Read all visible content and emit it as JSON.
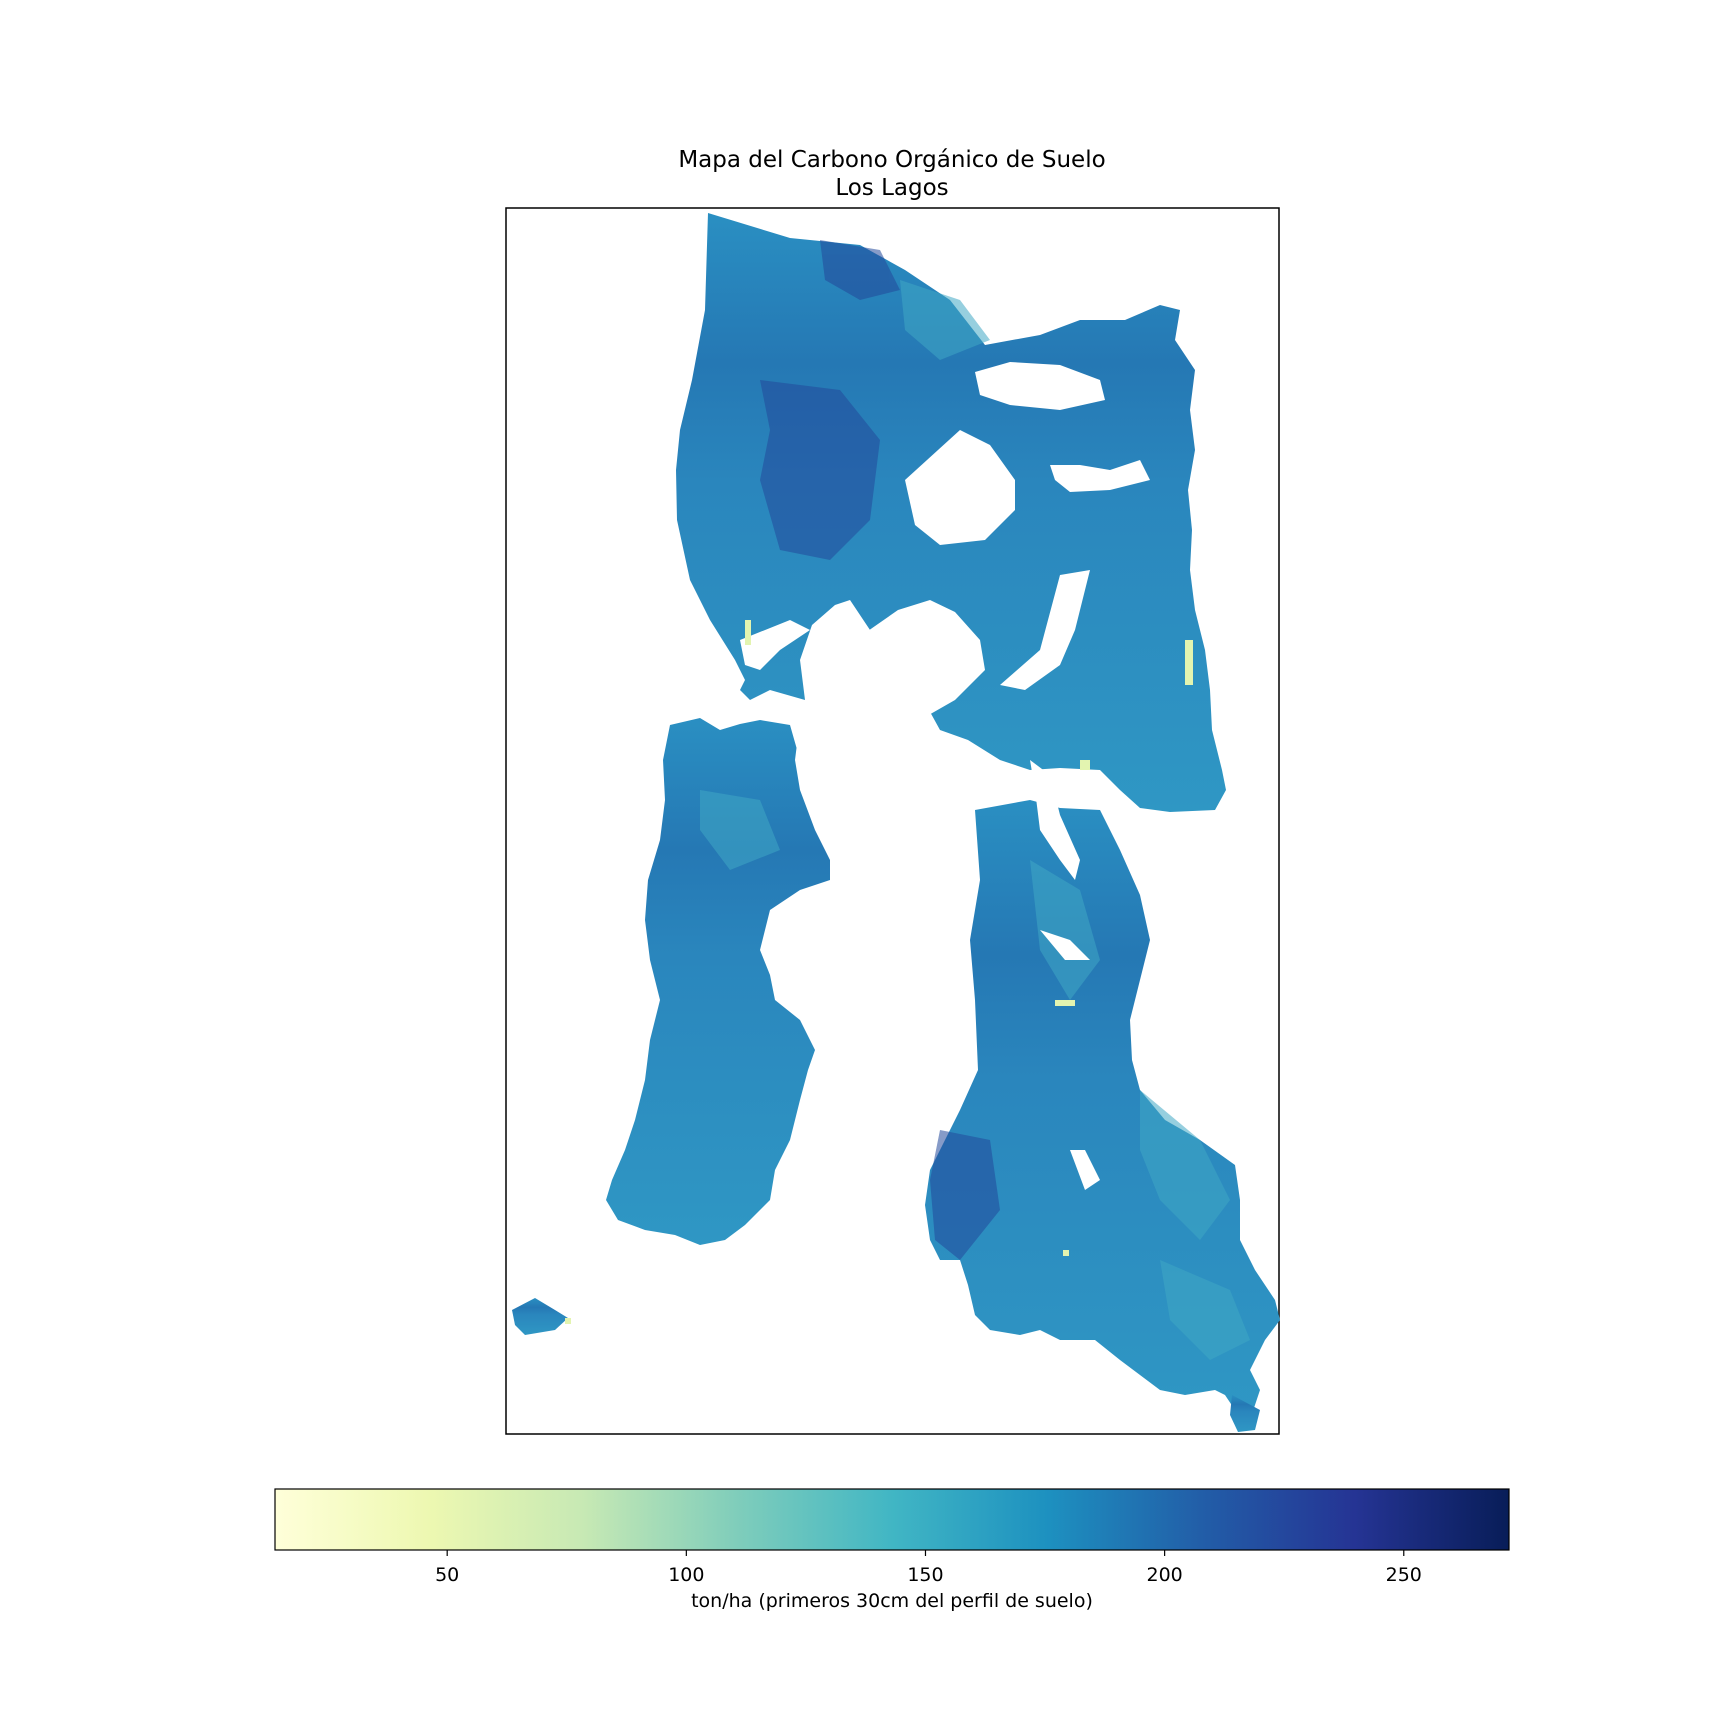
{
  "title_lines": [
    "Mapa del Carbono Orgánico de Suelo",
    "Los Lagos"
  ],
  "colorbar": {
    "label": "ton/ha (primeros 30cm del perfil de suelo)",
    "min": 14,
    "max": 272,
    "ticks": [
      50,
      100,
      150,
      200,
      250
    ],
    "tick_labels": [
      "50",
      "100",
      "150",
      "200",
      "250"
    ],
    "colormap": "YlGnBu",
    "stops": [
      "#ffffd9",
      "#edf8b1",
      "#c7e9b4",
      "#7fcdbb",
      "#41b6c4",
      "#1d91c0",
      "#225ea8",
      "#253494",
      "#081d58"
    ]
  },
  "map": {
    "region": "Los Lagos",
    "fill_color": "#2588bd",
    "no_data_color": "#ffffff"
  }
}
